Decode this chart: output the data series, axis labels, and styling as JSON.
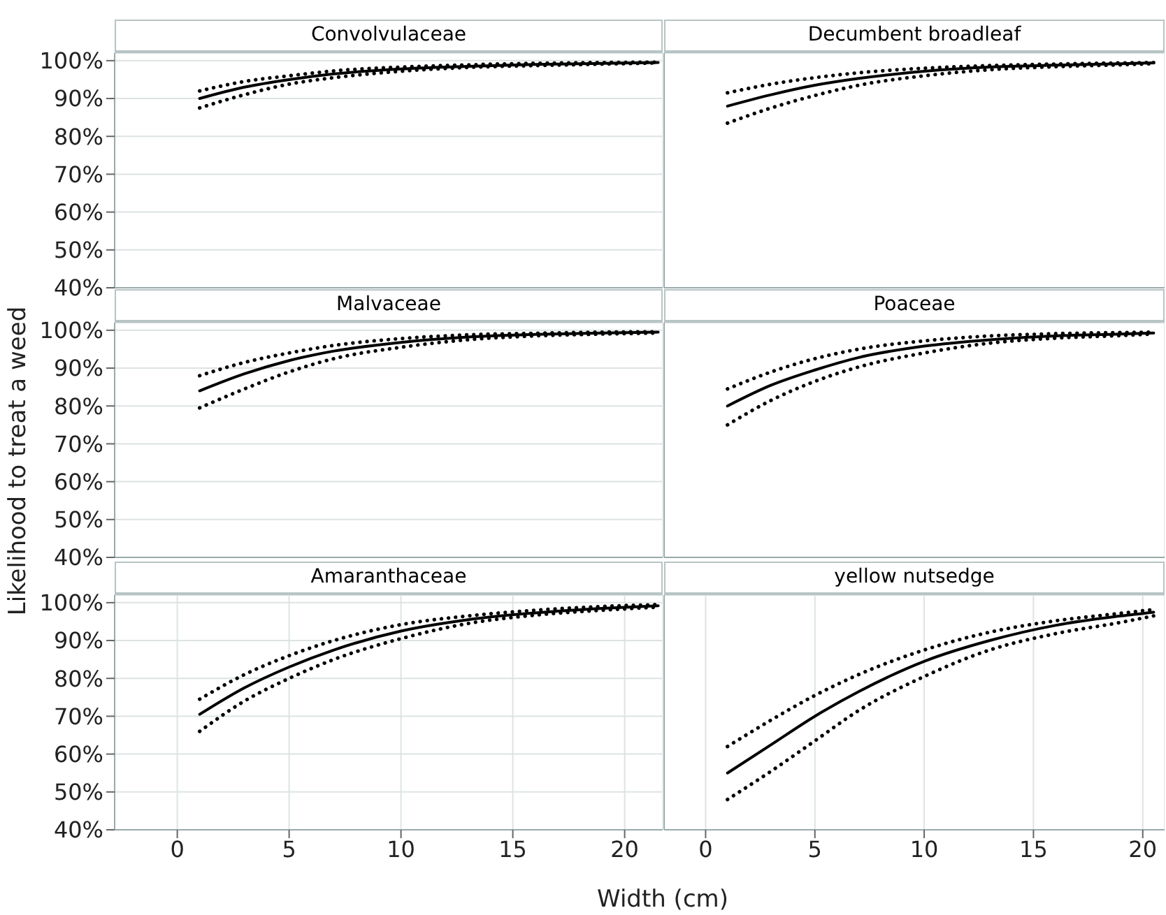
{
  "chart_data": [
    {
      "type": "line",
      "title": "Convolvulaceae",
      "x": [
        1,
        3,
        5,
        7,
        10,
        13,
        16,
        19,
        21.5
      ],
      "xlim": [
        -2.8,
        21.7
      ],
      "xticks": [
        0,
        5,
        10,
        15,
        20
      ],
      "ylim": [
        40,
        102
      ],
      "yticks": [
        {
          "value": 40,
          "label": "40%"
        },
        {
          "value": 50,
          "label": "50%"
        },
        {
          "value": 60,
          "label": "60%"
        },
        {
          "value": 70,
          "label": "70%"
        },
        {
          "value": 80,
          "label": "80%"
        },
        {
          "value": 90,
          "label": "90%"
        },
        {
          "value": 100,
          "label": "100%"
        }
      ],
      "grid": true,
      "tick_labels": "y",
      "marker": "none",
      "series": [
        {
          "color": "#000000",
          "line_style": "solid",
          "values": [
            90,
            93,
            95,
            96.5,
            97.8,
            98.5,
            99,
            99.3,
            99.5
          ]
        },
        {
          "color": "#000000",
          "line_style": "dotted",
          "values": [
            92,
            94.5,
            96,
            97.3,
            98.3,
            98.9,
            99.3,
            99.5,
            99.6
          ]
        },
        {
          "color": "#000000",
          "line_style": "dotted",
          "values": [
            87.5,
            91,
            93.8,
            95.5,
            97.2,
            98.2,
            98.7,
            99.1,
            99.4
          ]
        }
      ]
    },
    {
      "type": "line",
      "title": "Decumbent broadleaf",
      "x": [
        1,
        3,
        5,
        7,
        10,
        13,
        16,
        19,
        20.5
      ],
      "xlim": [
        -1.9,
        21
      ],
      "xticks": [
        0,
        5,
        10,
        15,
        20
      ],
      "ylim": [
        40,
        102
      ],
      "yticks": [
        {
          "value": 40,
          "label": null
        },
        {
          "value": 50,
          "label": null
        },
        {
          "value": 60,
          "label": null
        },
        {
          "value": 70,
          "label": null
        },
        {
          "value": 80,
          "label": null
        },
        {
          "value": 90,
          "label": null
        },
        {
          "value": 100,
          "label": null
        }
      ],
      "grid": true,
      "tick_labels": false,
      "marker": "none",
      "series": [
        {
          "color": "#000000",
          "line_style": "solid",
          "values": [
            88,
            91,
            93.5,
            95.3,
            97.2,
            98.3,
            98.8,
            99.2,
            99.4
          ]
        },
        {
          "color": "#000000",
          "line_style": "dotted",
          "values": [
            91.5,
            93.8,
            95.5,
            96.8,
            98,
            98.7,
            99.1,
            99.4,
            99.5
          ]
        },
        {
          "color": "#000000",
          "line_style": "dotted",
          "values": [
            83.5,
            87.5,
            90.8,
            93.5,
            96,
            97.6,
            98.4,
            98.9,
            99.2
          ]
        }
      ]
    },
    {
      "type": "line",
      "title": "Malvaceae",
      "ylabel": "Likelihood to treat a weed",
      "x": [
        1,
        3,
        5,
        7,
        10,
        13,
        16,
        19,
        21.5
      ],
      "xlim": [
        -2.8,
        21.7
      ],
      "xticks": [
        0,
        5,
        10,
        15,
        20
      ],
      "ylim": [
        40,
        102
      ],
      "yticks": [
        {
          "value": 40,
          "label": "40%"
        },
        {
          "value": 50,
          "label": "50%"
        },
        {
          "value": 60,
          "label": "60%"
        },
        {
          "value": 70,
          "label": "70%"
        },
        {
          "value": 80,
          "label": "80%"
        },
        {
          "value": 90,
          "label": "90%"
        },
        {
          "value": 100,
          "label": "100%"
        }
      ],
      "grid": true,
      "tick_labels": "y",
      "marker": "none",
      "series": [
        {
          "color": "#000000",
          "line_style": "solid",
          "values": [
            84,
            88.5,
            92,
            94.5,
            96.8,
            98.2,
            98.9,
            99.3,
            99.5
          ]
        },
        {
          "color": "#000000",
          "line_style": "dotted",
          "values": [
            88,
            91.5,
            94,
            96,
            97.8,
            98.8,
            99.2,
            99.5,
            99.6
          ]
        },
        {
          "color": "#000000",
          "line_style": "dotted",
          "values": [
            79.5,
            84.5,
            89,
            92.5,
            95.5,
            97.5,
            98.5,
            99,
            99.3
          ]
        }
      ]
    },
    {
      "type": "line",
      "title": "Poaceae",
      "x": [
        1,
        3,
        5,
        7,
        10,
        13,
        16,
        19,
        20.5
      ],
      "xlim": [
        -1.9,
        21
      ],
      "xticks": [
        0,
        5,
        10,
        15,
        20
      ],
      "ylim": [
        40,
        102
      ],
      "yticks": [
        {
          "value": 40,
          "label": null
        },
        {
          "value": 50,
          "label": null
        },
        {
          "value": 60,
          "label": null
        },
        {
          "value": 70,
          "label": null
        },
        {
          "value": 80,
          "label": null
        },
        {
          "value": 90,
          "label": null
        },
        {
          "value": 100,
          "label": null
        }
      ],
      "grid": true,
      "tick_labels": false,
      "marker": "none",
      "series": [
        {
          "color": "#000000",
          "line_style": "solid",
          "values": [
            80,
            85.5,
            89.5,
            92.8,
            95.8,
            97.5,
            98.5,
            99,
            99.3
          ]
        },
        {
          "color": "#000000",
          "line_style": "dotted",
          "values": [
            84.5,
            89,
            92.5,
            95,
            97.2,
            98.5,
            99.1,
            99.4,
            99.5
          ]
        },
        {
          "color": "#000000",
          "line_style": "dotted",
          "values": [
            75,
            81.5,
            86.5,
            90.3,
            94,
            96.6,
            97.9,
            98.6,
            99
          ]
        }
      ]
    },
    {
      "type": "line",
      "title": "Amaranthaceae",
      "xlabel": "Width (cm)",
      "x": [
        1,
        3,
        5,
        7,
        10,
        13,
        16,
        19,
        21.5
      ],
      "xlim": [
        -2.8,
        21.7
      ],
      "xticks": [
        0,
        5,
        10,
        15,
        20
      ],
      "ylim": [
        40,
        102
      ],
      "yticks": [
        {
          "value": 40,
          "label": "40%"
        },
        {
          "value": 50,
          "label": "50%"
        },
        {
          "value": 60,
          "label": "60%"
        },
        {
          "value": 70,
          "label": "70%"
        },
        {
          "value": 80,
          "label": "80%"
        },
        {
          "value": 90,
          "label": "90%"
        },
        {
          "value": 100,
          "label": "100%"
        }
      ],
      "grid": true,
      "marker": "none",
      "series": [
        {
          "color": "#000000",
          "line_style": "solid",
          "values": [
            70.5,
            77.5,
            83,
            87.5,
            92.5,
            95.5,
            97.3,
            98.5,
            99.2
          ]
        },
        {
          "color": "#000000",
          "line_style": "dotted",
          "values": [
            74.5,
            81,
            86,
            90,
            94.2,
            96.5,
            98,
            99,
            99.5
          ]
        },
        {
          "color": "#000000",
          "line_style": "dotted",
          "values": [
            66,
            74,
            80,
            85,
            90.5,
            94.5,
            96.7,
            98,
            98.8
          ]
        }
      ]
    },
    {
      "type": "line",
      "title": "yellow nutsedge",
      "x": [
        1,
        3,
        5,
        7,
        10,
        13,
        16,
        19,
        20.5
      ],
      "xlim": [
        -1.9,
        21
      ],
      "xticks": [
        0,
        5,
        10,
        15,
        20
      ],
      "ylim": [
        40,
        102
      ],
      "yticks": [
        {
          "value": 40,
          "label": null
        },
        {
          "value": 50,
          "label": null
        },
        {
          "value": 60,
          "label": null
        },
        {
          "value": 70,
          "label": null
        },
        {
          "value": 80,
          "label": null
        },
        {
          "value": 90,
          "label": null
        },
        {
          "value": 100,
          "label": null
        }
      ],
      "grid": true,
      "tick_labels": "x",
      "marker": "none",
      "series": [
        {
          "color": "#000000",
          "line_style": "solid",
          "values": [
            55,
            62.5,
            70,
            76.5,
            84.5,
            90,
            94,
            96.5,
            97.5
          ]
        },
        {
          "color": "#000000",
          "line_style": "dotted",
          "values": [
            62,
            69,
            75.5,
            81,
            87.5,
            92.2,
            95.2,
            97.2,
            98.2
          ]
        },
        {
          "color": "#000000",
          "line_style": "dotted",
          "values": [
            48,
            55.5,
            63.5,
            71.5,
            80.5,
            87.5,
            91.8,
            94.8,
            96.5
          ]
        }
      ]
    }
  ]
}
